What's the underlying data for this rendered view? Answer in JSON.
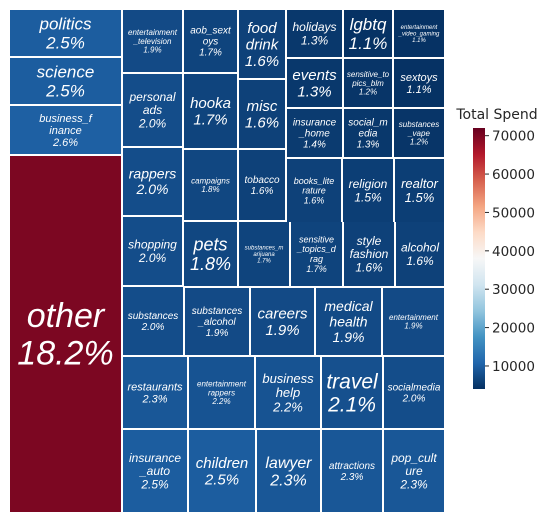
{
  "chart_data": {
    "type": "treemap",
    "title": "",
    "colorbar": {
      "title": "Total Spend",
      "ticks": [
        10000,
        20000,
        30000,
        40000,
        50000,
        60000,
        70000
      ],
      "tick_labels": [
        "10000",
        "20000",
        "30000",
        "40000",
        "50000",
        "60000",
        "70000"
      ],
      "range": [
        4000,
        72000
      ],
      "colormap": "RdBu_r"
    },
    "tiles": [
      {
        "name": "politics",
        "percent": 2.5
      },
      {
        "name": "science",
        "percent": 2.5
      },
      {
        "name": "business_finance",
        "percent": 2.6
      },
      {
        "name": "other",
        "percent": 18.2
      },
      {
        "name": "entertainment_television",
        "percent": 1.9
      },
      {
        "name": "aob_sextoys",
        "percent": 1.7
      },
      {
        "name": "food drink",
        "percent": 1.6
      },
      {
        "name": "holidays",
        "percent": 1.3
      },
      {
        "name": "lgbtq",
        "percent": 1.1
      },
      {
        "name": "entertainment_video_gaming",
        "percent": 1.1
      },
      {
        "name": "events",
        "percent": 1.3
      },
      {
        "name": "sensitive_topics_blm",
        "percent": 1.2
      },
      {
        "name": "sextoys",
        "percent": 1.1
      },
      {
        "name": "personal ads",
        "percent": 2.0
      },
      {
        "name": "hooka",
        "percent": 1.7
      },
      {
        "name": "misc",
        "percent": 1.6
      },
      {
        "name": "insurance_home",
        "percent": 1.4
      },
      {
        "name": "social_media",
        "percent": 1.3
      },
      {
        "name": "substances_vape",
        "percent": 1.2
      },
      {
        "name": "rappers",
        "percent": 2.0
      },
      {
        "name": "campaigns",
        "percent": 1.8
      },
      {
        "name": "tobacco",
        "percent": 1.6
      },
      {
        "name": "books_literature",
        "percent": 1.6
      },
      {
        "name": "religion",
        "percent": 1.5
      },
      {
        "name": "realtor",
        "percent": 1.5
      },
      {
        "name": "shopping",
        "percent": 2.0
      },
      {
        "name": "pets",
        "percent": 1.8
      },
      {
        "name": "substances_marjuana",
        "percent": 1.7
      },
      {
        "name": "sensitive_topics_drag",
        "percent": 1.7
      },
      {
        "name": "style fashion",
        "percent": 1.6
      },
      {
        "name": "alcohol",
        "percent": 1.6
      },
      {
        "name": "substances",
        "percent": 2.0
      },
      {
        "name": "substances_alcohol",
        "percent": 1.9
      },
      {
        "name": "careers",
        "percent": 1.9
      },
      {
        "name": "medical health",
        "percent": 1.9
      },
      {
        "name": "entertainment",
        "percent": 1.9
      },
      {
        "name": "restaurants",
        "percent": 2.3
      },
      {
        "name": "entertainment rappers",
        "percent": 2.2
      },
      {
        "name": "business help",
        "percent": 2.2
      },
      {
        "name": "travel",
        "percent": 2.1
      },
      {
        "name": "socialmedia",
        "percent": 2.0
      },
      {
        "name": "insurance_auto",
        "percent": 2.5
      },
      {
        "name": "children",
        "percent": 2.5
      },
      {
        "name": "lawyer",
        "percent": 2.3
      },
      {
        "name": "attractions",
        "percent": 2.3
      },
      {
        "name": "pop_culture",
        "percent": 2.3
      }
    ]
  }
}
